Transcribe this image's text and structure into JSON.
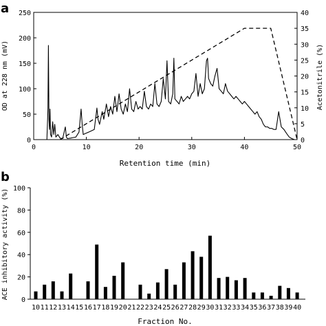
{
  "panels": {
    "a": "a",
    "b": "b"
  },
  "chart_data": [
    {
      "type": "line",
      "panel": "a",
      "xlabel": "Retention time (min)",
      "ylabel": "OD at 228 nm (mV)",
      "y2label": "Acetonitrile (%)",
      "xlim": [
        0,
        50
      ],
      "ylim": [
        0,
        250
      ],
      "y2lim": [
        0,
        40
      ],
      "xticks": [
        "0",
        "10",
        "20",
        "30",
        "40",
        "50"
      ],
      "yticks": [
        "0",
        "50",
        "100",
        "150",
        "200",
        "250"
      ],
      "y2ticks": [
        "0",
        "5",
        "10",
        "15",
        "20",
        "25",
        "30",
        "35",
        "40"
      ],
      "colors": {
        "line": "#000000"
      },
      "series": [
        {
          "style": "solid",
          "x": [
            0,
            2.5,
            2.7,
            2.8,
            2.9,
            3.0,
            3.1,
            3.2,
            3.4,
            3.6,
            3.8,
            4.0,
            4.2,
            4.6,
            5.0,
            5.5,
            6.0,
            6.2,
            6.4,
            7.0,
            7.5,
            8.0,
            8.6,
            9.0,
            9.2,
            9.4,
            9.8,
            10.5,
            11.5,
            12.0,
            12.2,
            12.5,
            13.0,
            13.3,
            13.8,
            14.2,
            14.6,
            15.0,
            15.4,
            15.8,
            16.2,
            16.6,
            17.0,
            17.4,
            17.8,
            18.2,
            18.6,
            19.0,
            19.4,
            19.8,
            20.2,
            20.6,
            21.0,
            21.4,
            21.8,
            22.2,
            22.6,
            23.0,
            23.4,
            23.8,
            24.2,
            24.6,
            25.0,
            25.3,
            25.6,
            26.0,
            26.4,
            26.6,
            26.8,
            27.2,
            27.6,
            28.0,
            28.4,
            28.8,
            29.2,
            29.6,
            30.0,
            30.4,
            30.8,
            31.2,
            31.6,
            32.0,
            32.4,
            32.8,
            33.0,
            33.2,
            33.6,
            34.0,
            34.4,
            34.8,
            35.2,
            35.6,
            36.0,
            36.4,
            36.8,
            37.2,
            37.6,
            38.0,
            38.4,
            38.8,
            39.2,
            39.6,
            40.0,
            40.4,
            40.8,
            41.2,
            41.6,
            42.0,
            42.4,
            42.8,
            43.2,
            43.6,
            44.0,
            44.4,
            44.8,
            45.2,
            45.6,
            46.0,
            46.5,
            47.0,
            47.5,
            48.0,
            48.5,
            49.0,
            49.5,
            50
          ],
          "y": [
            0,
            0,
            60,
            185,
            40,
            20,
            60,
            10,
            5,
            35,
            10,
            30,
            5,
            10,
            3,
            2,
            25,
            5,
            2,
            3,
            4,
            5,
            15,
            60,
            30,
            10,
            12,
            15,
            20,
            62,
            40,
            30,
            55,
            40,
            70,
            45,
            65,
            50,
            85,
            55,
            90,
            60,
            50,
            70,
            55,
            100,
            60,
            55,
            75,
            60,
            65,
            60,
            95,
            65,
            60,
            70,
            65,
            110,
            70,
            65,
            75,
            120,
            80,
            155,
            75,
            70,
            90,
            160,
            80,
            75,
            70,
            85,
            75,
            80,
            85,
            80,
            90,
            95,
            130,
            85,
            110,
            90,
            100,
            155,
            160,
            120,
            110,
            105,
            125,
            140,
            100,
            95,
            90,
            110,
            95,
            90,
            85,
            80,
            85,
            80,
            75,
            70,
            75,
            70,
            65,
            60,
            55,
            50,
            55,
            45,
            40,
            30,
            25,
            25,
            22,
            22,
            20,
            20,
            55,
            25,
            20,
            12,
            5,
            2,
            0,
            0
          ]
        },
        {
          "style": "dashed",
          "axis": "right",
          "x": [
            5,
            40,
            45,
            50
          ],
          "y": [
            0,
            35,
            35,
            0
          ]
        }
      ]
    },
    {
      "type": "bar",
      "panel": "b",
      "xlabel": "Fraction No.",
      "ylabel": "ACE inhibitory activity (%)",
      "ylim": [
        0,
        100
      ],
      "yticks": [
        "0",
        "20",
        "40",
        "60",
        "80",
        "100"
      ],
      "categories": [
        "10",
        "11",
        "12",
        "13",
        "14",
        "15",
        "16",
        "17",
        "18",
        "19",
        "20",
        "21",
        "22",
        "23",
        "24",
        "25",
        "26",
        "27",
        "28",
        "29",
        "30",
        "31",
        "32",
        "33",
        "34",
        "35",
        "36",
        "37",
        "38",
        "39",
        "40"
      ],
      "values": [
        7,
        13,
        16,
        7,
        23,
        0,
        16,
        49,
        11,
        21,
        33,
        0,
        13,
        5,
        15,
        27,
        13,
        33,
        43,
        38,
        57,
        19,
        20,
        17,
        19,
        6,
        6,
        3,
        12,
        10,
        6
      ],
      "colors": {
        "bar": "#000000"
      }
    }
  ]
}
